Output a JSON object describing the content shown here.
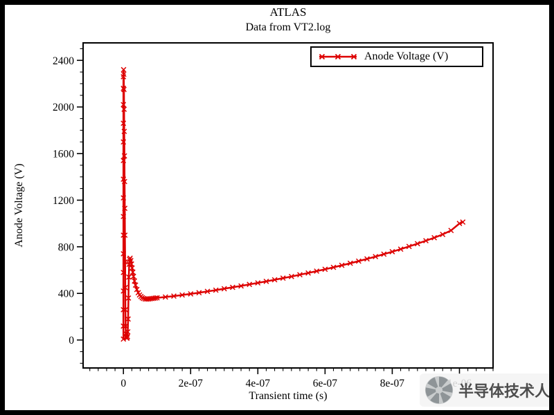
{
  "page": {
    "background": "#ffffff",
    "frame_color": "#000000"
  },
  "chart_data": {
    "type": "line",
    "title": "ATLAS",
    "subtitle": "Data from VT2.log",
    "xlabel": "Transient time (s)",
    "ylabel": "Anode Voltage (V)",
    "xlim": [
      -1.2e-07,
      1.1e-06
    ],
    "ylim": [
      -240,
      2550
    ],
    "x_major_ticks": [
      0,
      2e-07,
      4e-07,
      6e-07,
      8e-07,
      1e-06
    ],
    "x_tick_labels": [
      "0",
      "2e-07",
      "4e-07",
      "6e-07",
      "8e-07",
      "1e-06"
    ],
    "x_minor_step": 2.5e-08,
    "y_major_ticks": [
      0,
      400,
      800,
      1200,
      1600,
      2000,
      2400
    ],
    "y_tick_labels": [
      "0",
      "400",
      "800",
      "1200",
      "1600",
      "2000",
      "2400"
    ],
    "y_minor_step": 100,
    "grid": false,
    "legend": {
      "position": "top-right",
      "entries": [
        {
          "label": "Anode Voltage (V)",
          "color": "#dd0000",
          "marker": "x"
        }
      ]
    },
    "series": [
      {
        "name": "Anode Voltage (V)",
        "color": "#dd0000",
        "marker": "x",
        "points": [
          [
            0,
            8
          ],
          [
            0,
            120
          ],
          [
            0,
            260
          ],
          [
            0,
            420
          ],
          [
            0,
            580
          ],
          [
            0,
            740
          ],
          [
            0,
            900
          ],
          [
            0,
            1060
          ],
          [
            0,
            1220
          ],
          [
            0,
            1380
          ],
          [
            0,
            1540
          ],
          [
            0,
            1700
          ],
          [
            0,
            1860
          ],
          [
            0,
            2020
          ],
          [
            0,
            2160
          ],
          [
            0,
            2260
          ],
          [
            5e-10,
            2320
          ],
          [
            1e-09,
            2280
          ],
          [
            1.5e-09,
            2150
          ],
          [
            2e-09,
            1980
          ],
          [
            2.5e-09,
            1790
          ],
          [
            3e-09,
            1580
          ],
          [
            3.5e-09,
            1360
          ],
          [
            4e-09,
            1130
          ],
          [
            4.5e-09,
            900
          ],
          [
            5e-09,
            670
          ],
          [
            5.5e-09,
            450
          ],
          [
            6e-09,
            260
          ],
          [
            6.5e-09,
            120
          ],
          [
            7e-09,
            55
          ],
          [
            8e-09,
            28
          ],
          [
            9e-09,
            18
          ],
          [
            1e-08,
            15
          ],
          [
            1.1e-08,
            18
          ],
          [
            1.2e-08,
            30
          ],
          [
            1.3e-08,
            70
          ],
          [
            1.4e-08,
            180
          ],
          [
            1.5e-08,
            360
          ],
          [
            1.6e-08,
            540
          ],
          [
            1.7e-08,
            650
          ],
          [
            1.8e-08,
            692
          ],
          [
            2e-08,
            702
          ],
          [
            2.2e-08,
            682
          ],
          [
            2.4e-08,
            652
          ],
          [
            2.6e-08,
            618
          ],
          [
            2.8e-08,
            582
          ],
          [
            3e-08,
            546
          ],
          [
            3.3e-08,
            506
          ],
          [
            3.6e-08,
            471
          ],
          [
            4e-08,
            433
          ],
          [
            4.4e-08,
            406
          ],
          [
            4.8e-08,
            387
          ],
          [
            5.2e-08,
            373
          ],
          [
            5.6e-08,
            363
          ],
          [
            6e-08,
            356
          ],
          [
            6.5e-08,
            352
          ],
          [
            7e-08,
            351
          ],
          [
            7.5e-08,
            352
          ],
          [
            8e-08,
            354
          ],
          [
            8.5e-08,
            356
          ],
          [
            9e-08,
            358
          ],
          [
            9.5e-08,
            360
          ],
          [
            1e-07,
            362
          ],
          [
            1.25e-07,
            369
          ],
          [
            1.5e-07,
            377
          ],
          [
            1.75e-07,
            386
          ],
          [
            2e-07,
            396
          ],
          [
            2.25e-07,
            406
          ],
          [
            2.5e-07,
            417
          ],
          [
            2.75e-07,
            428
          ],
          [
            3e-07,
            440
          ],
          [
            3.25e-07,
            452
          ],
          [
            3.5e-07,
            464
          ],
          [
            3.75e-07,
            477
          ],
          [
            4e-07,
            490
          ],
          [
            4.25e-07,
            503
          ],
          [
            4.5e-07,
            517
          ],
          [
            4.75e-07,
            531
          ],
          [
            5e-07,
            545
          ],
          [
            5.25e-07,
            560
          ],
          [
            5.5e-07,
            575
          ],
          [
            5.75e-07,
            591
          ],
          [
            6e-07,
            607
          ],
          [
            6.25e-07,
            624
          ],
          [
            6.5e-07,
            641
          ],
          [
            6.75e-07,
            659
          ],
          [
            7e-07,
            677
          ],
          [
            7.25e-07,
            696
          ],
          [
            7.5e-07,
            716
          ],
          [
            7.75e-07,
            737
          ],
          [
            8e-07,
            758
          ],
          [
            8.25e-07,
            780
          ],
          [
            8.5e-07,
            803
          ],
          [
            8.75e-07,
            827
          ],
          [
            9e-07,
            852
          ],
          [
            9.25e-07,
            878
          ],
          [
            9.5e-07,
            906
          ],
          [
            9.75e-07,
            940
          ],
          [
            1e-06,
            1000
          ],
          [
            1.01e-06,
            1012
          ]
        ]
      }
    ]
  },
  "watermark": {
    "text": "半导体技术人",
    "logo": "pinwheel-logo"
  }
}
